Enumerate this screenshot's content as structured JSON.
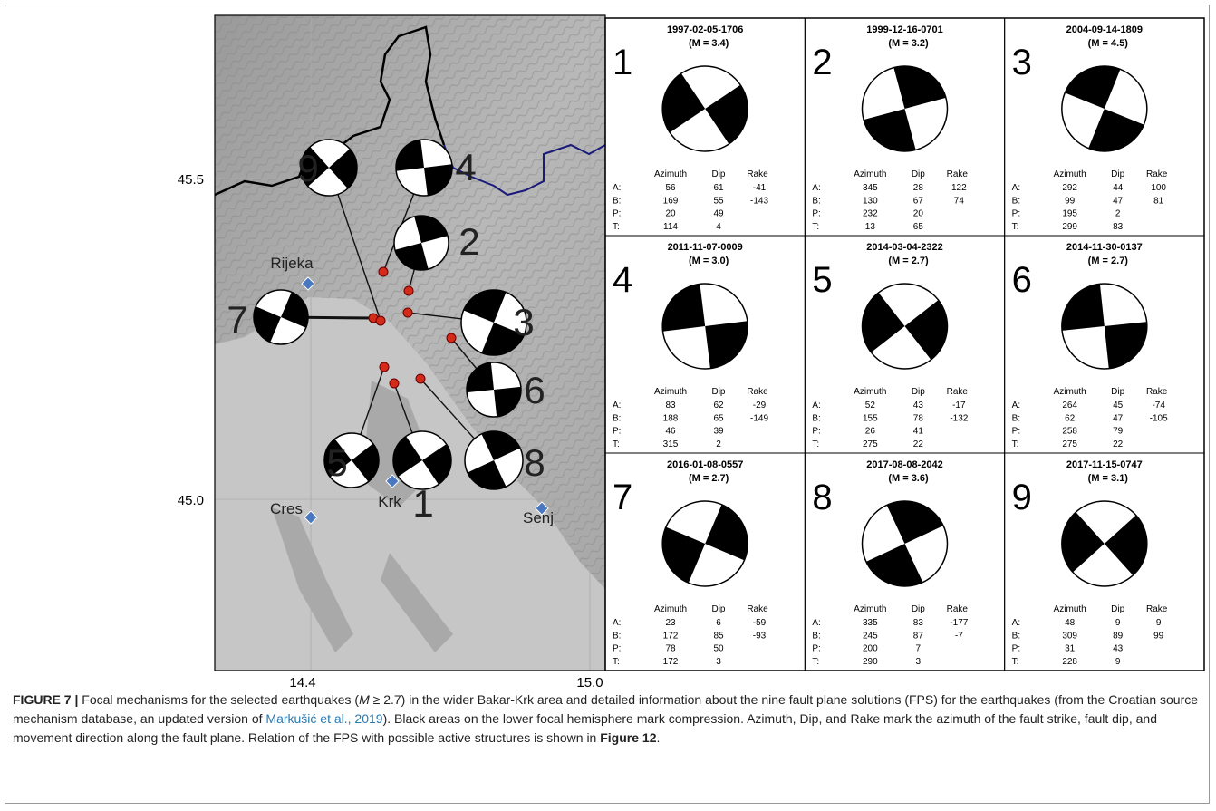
{
  "map": {
    "lat_labels": [
      "45.5",
      "45.0"
    ],
    "lon_labels": [
      "14.4",
      "15.0"
    ],
    "places": [
      "Rijeka",
      "Cres",
      "Krk",
      "Senj"
    ],
    "markers": [
      "1",
      "2",
      "3",
      "4",
      "5",
      "6",
      "7",
      "8",
      "9"
    ]
  },
  "table_headers": [
    "Azimuth",
    "Dip",
    "Rake"
  ],
  "panels": [
    {
      "number": "1",
      "date": "1997-02-05-1706",
      "magnitude": "(M = 3.4)",
      "rows": [
        [
          "A:",
          56,
          61,
          -41
        ],
        [
          "B:",
          169,
          55,
          -143
        ],
        [
          "P:",
          20,
          49
        ],
        [
          "T:",
          114,
          4
        ]
      ]
    },
    {
      "number": "2",
      "date": "1999-12-16-0701",
      "magnitude": "(M = 3.2)",
      "rows": [
        [
          "A:",
          345,
          28,
          122
        ],
        [
          "B:",
          130,
          67,
          74
        ],
        [
          "P:",
          232,
          20
        ],
        [
          "T:",
          13,
          65
        ]
      ]
    },
    {
      "number": "3",
      "date": "2004-09-14-1809",
      "magnitude": "(M = 4.5)",
      "rows": [
        [
          "A:",
          292,
          44,
          100
        ],
        [
          "B:",
          99,
          47,
          81
        ],
        [
          "P:",
          195,
          2
        ],
        [
          "T:",
          299,
          83
        ]
      ]
    },
    {
      "number": "4",
      "date": "2011-11-07-0009",
      "magnitude": "(M = 3.0)",
      "rows": [
        [
          "A:",
          83,
          62,
          -29
        ],
        [
          "B:",
          188,
          65,
          -149
        ],
        [
          "P:",
          46,
          39
        ],
        [
          "T:",
          315,
          2
        ]
      ]
    },
    {
      "number": "5",
      "date": "2014-03-04-2322",
      "magnitude": "(M = 2.7)",
      "rows": [
        [
          "A:",
          52,
          43,
          -17
        ],
        [
          "B:",
          155,
          78,
          -132
        ],
        [
          "P:",
          26,
          41
        ],
        [
          "T:",
          275,
          22
        ]
      ]
    },
    {
      "number": "6",
      "date": "2014-11-30-0137",
      "magnitude": "(M = 2.7)",
      "rows": [
        [
          "A:",
          264,
          45,
          -74
        ],
        [
          "B:",
          62,
          47,
          -105
        ],
        [
          "P:",
          258,
          79
        ],
        [
          "T:",
          275,
          22
        ]
      ]
    },
    {
      "number": "7",
      "date": "2016-01-08-0557",
      "magnitude": "(M = 2.7)",
      "rows": [
        [
          "A:",
          23,
          6,
          -59
        ],
        [
          "B:",
          172,
          85,
          -93
        ],
        [
          "P:",
          78,
          50
        ],
        [
          "T:",
          172,
          3
        ]
      ]
    },
    {
      "number": "8",
      "date": "2017-08-08-2042",
      "magnitude": "(M = 3.6)",
      "rows": [
        [
          "A:",
          335,
          83,
          -177
        ],
        [
          "B:",
          245,
          87,
          -7
        ],
        [
          "P:",
          200,
          7
        ],
        [
          "T:",
          290,
          3
        ]
      ]
    },
    {
      "number": "9",
      "date": "2017-11-15-0747",
      "magnitude": "(M = 3.1)",
      "rows": [
        [
          "A:",
          48,
          9,
          9
        ],
        [
          "B:",
          309,
          89,
          99
        ],
        [
          "P:",
          31,
          43
        ],
        [
          "T:",
          228,
          9
        ]
      ]
    }
  ],
  "caption": {
    "label": "FIGURE 7 |",
    "text1": " Focal mechanisms for the selected earthquakes (",
    "italic": "M",
    "text2": " ≥ 2.7) in the wider Bakar-Krk area and detailed information about the nine fault plane solutions (FPS) for the earthquakes (from the Croatian source mechanism database, an updated version of ",
    "link": "Markušić et al., 2019",
    "text3": "). Black areas on the lower focal hemisphere mark compression. Azimuth, Dip, and Rake mark the azimuth of the fault strike, fault dip, and movement direction along the fault plane. Relation of the FPS with possible active structures is shown in ",
    "ref": "Figure 12",
    "text4": "."
  }
}
